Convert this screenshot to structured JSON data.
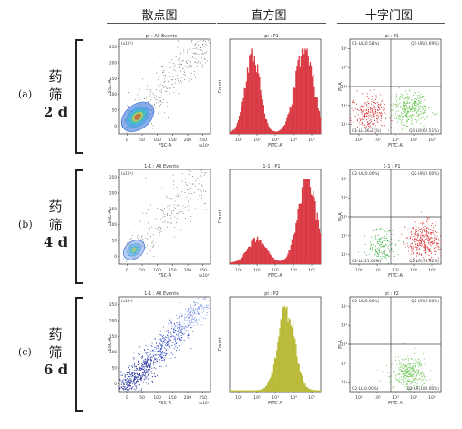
{
  "column_headers": [
    "散点图",
    "直方图",
    "十字门图"
  ],
  "rows": [
    {
      "letter": "(a)",
      "drug": "药",
      "sieve": "筛",
      "days": "2 d",
      "scatter": {
        "title": "pi : All Events",
        "xlabel": "FSC-A",
        "ylabel": "SSC-A",
        "xmult": "(x10³)",
        "ymult": "(x10³)",
        "xticks": [
          "0",
          "50",
          "100",
          "150",
          "200",
          "250"
        ],
        "yticks": [
          "0",
          "50",
          "100",
          "150",
          "200",
          "250"
        ],
        "pattern": "density"
      },
      "histogram": {
        "title": "pi : P1",
        "xlabel": "FITC-A",
        "ylabel": "Count",
        "xticks": [
          "10¹",
          "10²",
          "10³",
          "10⁴",
          "10⁵"
        ],
        "color": "#d93a44",
        "peaks": [
          [
            0.25,
            0.95,
            0.08
          ],
          [
            0.82,
            1.0,
            0.1
          ]
        ]
      },
      "quadrant": {
        "title": "pi : P1",
        "xlabel": "FITC-A",
        "ylabel": "PI-A",
        "xticks": [
          "10¹",
          "10²",
          "10³",
          "10⁴",
          "10⁵"
        ],
        "yticks": [
          "10¹",
          "10²",
          "10³",
          "10⁴",
          "10⁵"
        ],
        "ul": "Q1-UL(0.58%)",
        "ur": "Q1-UR(0.69%)",
        "ll": "Q1-LL(36.23%)",
        "lr": "Q1-LR(62.51%)",
        "clusters": [
          {
            "cx": 0.22,
            "cy": 0.22,
            "n": 260,
            "color": "#d83030"
          },
          {
            "cx": 0.66,
            "cy": 0.26,
            "n": 320,
            "color": "#62c24a"
          }
        ]
      }
    },
    {
      "letter": "(b)",
      "drug": "药",
      "sieve": "筛",
      "days": "4 d",
      "scatter": {
        "title": "1-1 : All Events",
        "xlabel": "FSC-A",
        "ylabel": "SSC-A",
        "xmult": "(x10³)",
        "ymult": "(x10³)",
        "xticks": [
          "0",
          "50",
          "100",
          "150",
          "200",
          "250"
        ],
        "yticks": [
          "0",
          "50",
          "100",
          "150",
          "200",
          "250"
        ],
        "pattern": "sparse"
      },
      "histogram": {
        "title": "1-1 : P1",
        "xlabel": "FITC-A",
        "ylabel": "Count",
        "xticks": [
          "10¹",
          "10²",
          "10³",
          "10⁴",
          "10⁵"
        ],
        "color": "#d93a44",
        "peaks": [
          [
            0.3,
            0.28,
            0.1
          ],
          [
            0.85,
            1.0,
            0.1
          ]
        ]
      },
      "quadrant": {
        "title": "1-1 : P1",
        "xlabel": "FITC-A",
        "ylabel": "PI-A",
        "xticks": [
          "10¹",
          "10²",
          "10³",
          "10⁴",
          "10⁵"
        ],
        "yticks": [
          "10¹",
          "10²",
          "10³",
          "10⁴",
          "10⁵"
        ],
        "ul": "Q2-UL(0.00%)",
        "ur": "Q2-UR(0.00%)",
        "ll": "Q2-LL(21.08%)",
        "lr": "Q2-LR(78.92%)",
        "clusters": [
          {
            "cx": 0.35,
            "cy": 0.18,
            "n": 160,
            "color": "#3cb040"
          },
          {
            "cx": 0.83,
            "cy": 0.25,
            "n": 360,
            "color": "#d83030"
          }
        ]
      }
    },
    {
      "letter": "(c)",
      "drug": "药",
      "sieve": "筛",
      "days": "6 d",
      "scatter": {
        "title": "1-1 : All Events",
        "xlabel": "FSC-A",
        "ylabel": "SSC-A",
        "xmult": "(x10³)",
        "ymult": "(x10³)",
        "xticks": [
          "0",
          "50",
          "100",
          "150",
          "200",
          "250"
        ],
        "yticks": [
          "0",
          "50",
          "100",
          "150",
          "200",
          "250"
        ],
        "pattern": "blue"
      },
      "histogram": {
        "title": "pi : P2",
        "xlabel": "FITC-A",
        "ylabel": "Count",
        "xticks": [
          "10¹",
          "10²",
          "10³",
          "10⁴",
          "10⁵"
        ],
        "color": "#b8ba38",
        "peaks": [
          [
            0.62,
            1.0,
            0.09
          ]
        ]
      },
      "quadrant": {
        "title": "pi : P2",
        "xlabel": "FITC-A",
        "ylabel": "PI-A",
        "xticks": [
          "10¹",
          "10²",
          "10³",
          "10⁴",
          "10⁵"
        ],
        "yticks": [
          "10¹",
          "10²",
          "10³",
          "10⁴",
          "10⁵"
        ],
        "ul": "Q2-UL(0.00%)",
        "ur": "Q2-UR(0.00%)",
        "ll": "Q2-LL(0.00%)",
        "lr": "Q2-LR(100.00%)",
        "clusters": [
          {
            "cx": 0.66,
            "cy": 0.2,
            "n": 340,
            "color": "#74c85c"
          }
        ]
      }
    }
  ]
}
